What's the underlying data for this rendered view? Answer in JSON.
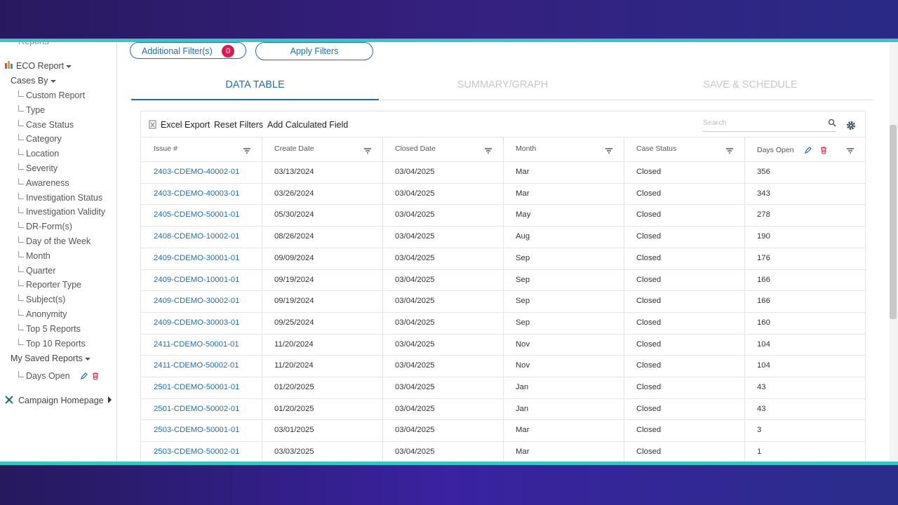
{
  "sidebar": {
    "reports_label": "Reports",
    "eco_report": "ECO Report",
    "cases_by": "Cases By",
    "items": [
      "Custom Report",
      "Type",
      "Case Status",
      "Category",
      "Location",
      "Severity",
      "Awareness",
      "Investigation Status",
      "Investigation Validity",
      "DR-Form(s)",
      "Day of the Week",
      "Month",
      "Quarter",
      "Reporter Type",
      "Subject(s)",
      "Anonymity",
      "Top 5 Reports",
      "Top 10 Reports"
    ],
    "my_saved_reports": "My Saved Reports",
    "saved_items": [
      "Days Open"
    ],
    "campaign": "Campaign Homepage"
  },
  "filters": {
    "additional": "Additional Filter(s)",
    "badge": 0,
    "apply": "Apply Filters"
  },
  "tabs": [
    "DATA TABLE",
    "SUMMARY/GRAPH",
    "SAVE & SCHEDULE"
  ],
  "toolbar": {
    "buttons": [
      "Excel Export",
      "Reset Filters",
      "Add Calculated Field"
    ],
    "search_placeholder": "Search"
  },
  "table": {
    "columns": [
      "Issue #",
      "Create Date",
      "Closed Date",
      "Month",
      "Case Status",
      "Days Open"
    ],
    "rows": [
      [
        "2403-CDEMO-40002-01",
        "03/13/2024",
        "03/04/2025",
        "Mar",
        "Closed",
        356
      ],
      [
        "2403-CDEMO-40003-01",
        "03/26/2024",
        "03/04/2025",
        "Mar",
        "Closed",
        343
      ],
      [
        "2405-CDEMO-50001-01",
        "05/30/2024",
        "03/04/2025",
        "May",
        "Closed",
        278
      ],
      [
        "2408-CDEMO-10002-01",
        "08/26/2024",
        "03/04/2025",
        "Aug",
        "Closed",
        190
      ],
      [
        "2409-CDEMO-30001-01",
        "09/09/2024",
        "03/04/2025",
        "Sep",
        "Closed",
        176
      ],
      [
        "2409-CDEMO-10001-01",
        "09/19/2024",
        "03/04/2025",
        "Sep",
        "Closed",
        166
      ],
      [
        "2409-CDEMO-30002-01",
        "09/19/2024",
        "03/04/2025",
        "Sep",
        "Closed",
        166
      ],
      [
        "2409-CDEMO-30003-01",
        "09/25/2024",
        "03/04/2025",
        "Sep",
        "Closed",
        160
      ],
      [
        "2411-CDEMO-50001-01",
        "11/20/2024",
        "03/04/2025",
        "Nov",
        "Closed",
        104
      ],
      [
        "2411-CDEMO-50002-01",
        "11/20/2024",
        "03/04/2025",
        "Nov",
        "Closed",
        104
      ],
      [
        "2501-CDEMO-50001-01",
        "01/20/2025",
        "03/04/2025",
        "Jan",
        "Closed",
        43
      ],
      [
        "2501-CDEMO-50002-01",
        "01/20/2025",
        "03/04/2025",
        "Jan",
        "Closed",
        43
      ],
      [
        "2503-CDEMO-50001-01",
        "03/01/2025",
        "03/04/2025",
        "Mar",
        "Closed",
        3
      ],
      [
        "2503-CDEMO-50002-01",
        "03/03/2025",
        "03/04/2025",
        "Mar",
        "Closed",
        1
      ]
    ]
  }
}
